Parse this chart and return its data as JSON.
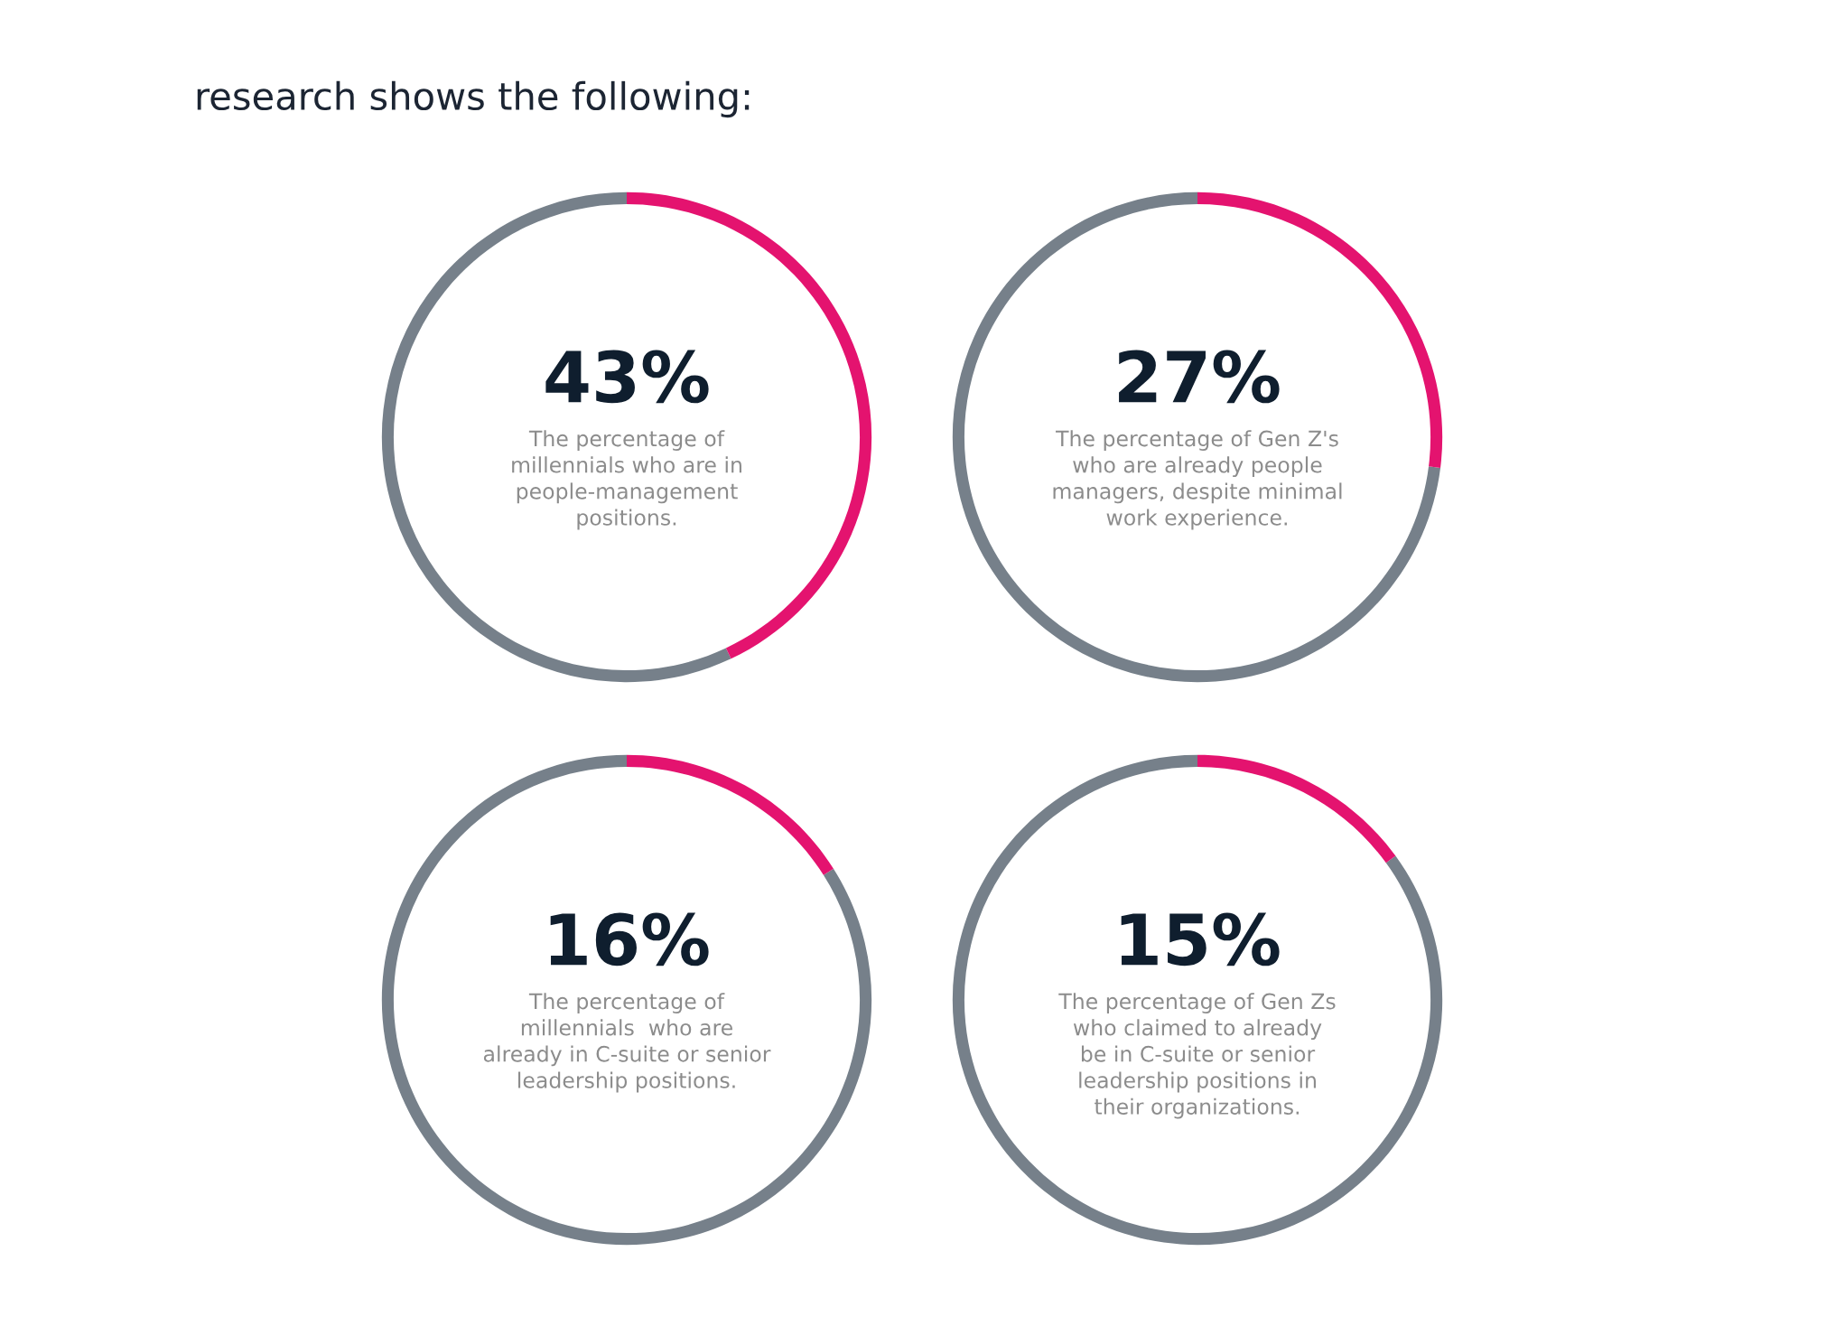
{
  "chart_data": [
    {
      "type": "donut",
      "title": "research shows the following:",
      "categories": [
        null,
        null
      ],
      "values": [
        43,
        57
      ],
      "colors": [
        "#e4136f",
        "#76808a"
      ],
      "value_labels": [
        "43%",
        null
      ],
      "annotations": [
        "The percentage of\nmillennials who are in\npeople-management\npositions."
      ]
    },
    {
      "type": "donut",
      "categories": [
        null,
        null
      ],
      "values": [
        27,
        73
      ],
      "colors": [
        "#e4136f",
        "#76808a"
      ],
      "value_labels": [
        "27%",
        null
      ],
      "annotations": [
        "The percentage of Gen Z's\nwho are already people\nmanagers, despite minimal\nwork experience."
      ]
    },
    {
      "type": "donut",
      "categories": [
        null,
        null
      ],
      "values": [
        16,
        84
      ],
      "colors": [
        "#e4136f",
        "#76808a"
      ],
      "value_labels": [
        "16%",
        null
      ],
      "annotations": [
        "The percentage of\nmillennials  who are\nalready in C-suite or senior\nleadership positions."
      ]
    },
    {
      "type": "donut",
      "categories": [
        null,
        null
      ],
      "values": [
        15,
        85
      ],
      "colors": [
        "#e4136f",
        "#76808a"
      ],
      "value_labels": [
        "15%",
        null
      ],
      "annotations": [
        "The percentage of Gen Zs\nwho claimed to already\nbe in C-suite or senior\nleadership positions in\ntheir organizations."
      ]
    }
  ]
}
